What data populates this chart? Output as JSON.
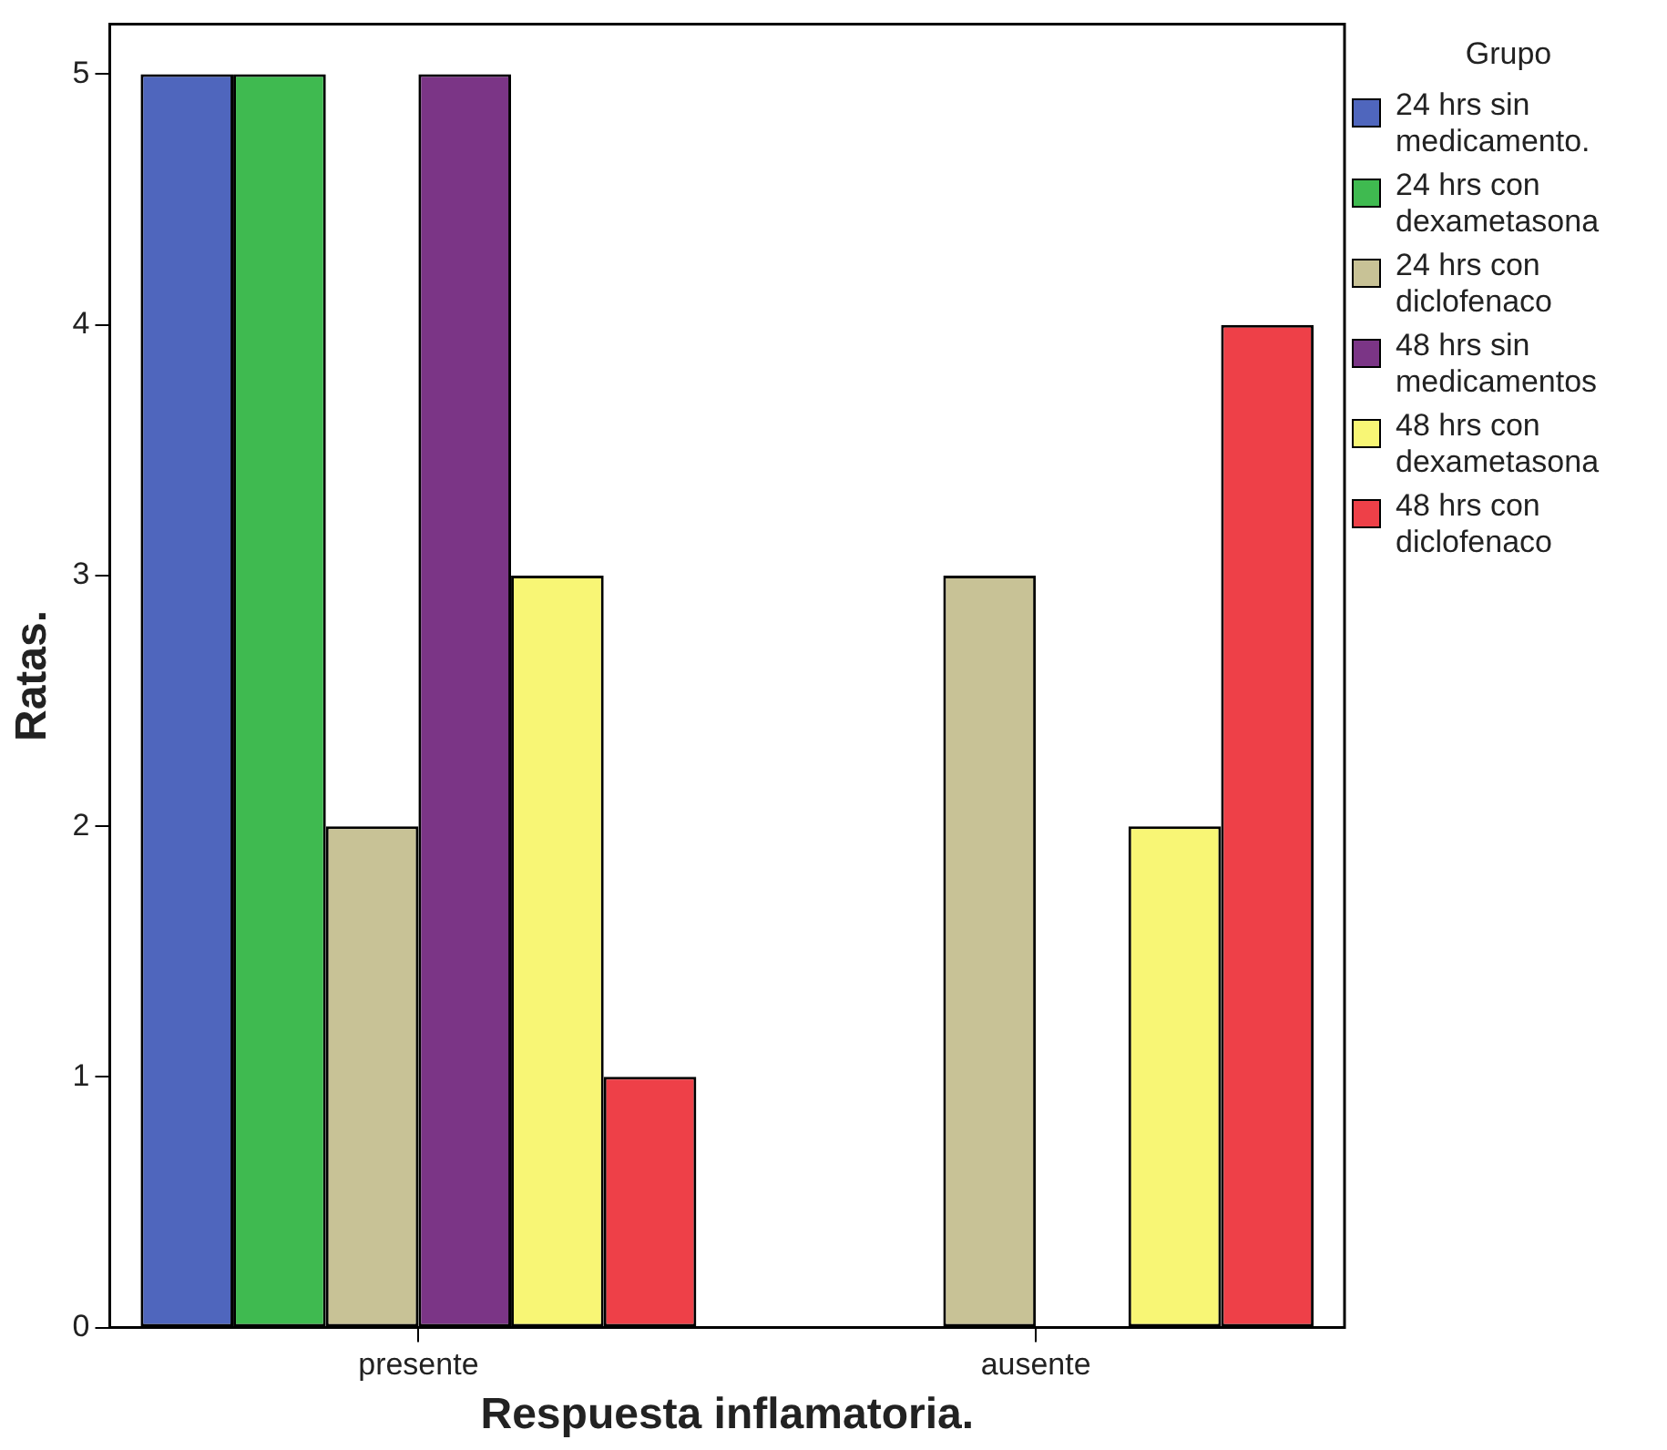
{
  "chart_data": {
    "type": "bar",
    "xlabel": "Respuesta inflamatoria.",
    "ylabel": "Ratas.",
    "legend_title": "Grupo",
    "categories": [
      "presente",
      "ausente"
    ],
    "series": [
      {
        "name": "24 hrs sin medicamento.",
        "color": "#4f66bd",
        "values": [
          5,
          0
        ]
      },
      {
        "name": "24 hrs con dexametasona",
        "color": "#3fba50",
        "values": [
          5,
          0
        ]
      },
      {
        "name": "24 hrs con diclofenaco",
        "color": "#c8c296",
        "values": [
          2,
          3
        ]
      },
      {
        "name": "48 hrs sin medicamentos",
        "color": "#7b3586",
        "values": [
          5,
          0
        ]
      },
      {
        "name": "48 hrs con dexametasona",
        "color": "#f8f675",
        "values": [
          3,
          2
        ]
      },
      {
        "name": "48 hrs con diclofenaco",
        "color": "#ee4048",
        "values": [
          1,
          4
        ]
      }
    ],
    "ylim": [
      0,
      5.2
    ],
    "yticks": [
      0,
      1,
      2,
      3,
      4,
      5
    ],
    "grid": false,
    "legend": "right"
  }
}
